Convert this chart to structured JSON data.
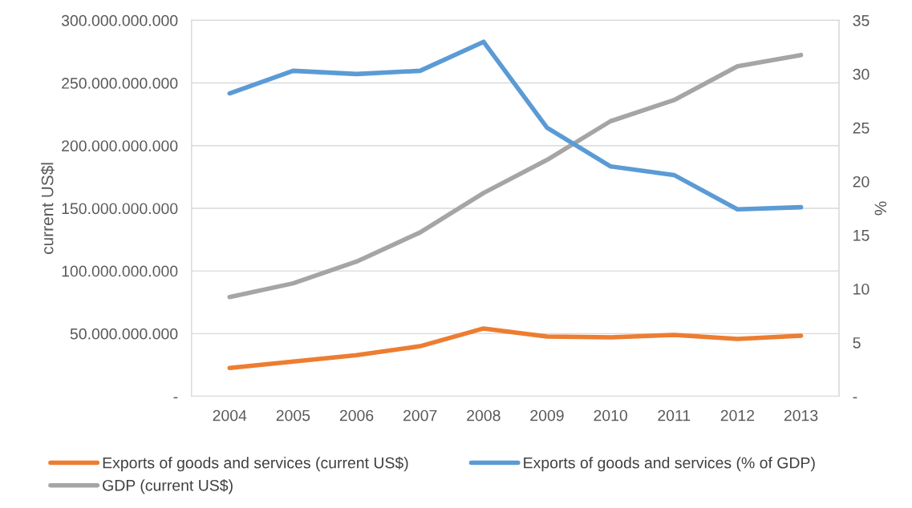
{
  "chart_data": {
    "type": "line",
    "categories": [
      "2004",
      "2005",
      "2006",
      "2007",
      "2008",
      "2009",
      "2010",
      "2011",
      "2012",
      "2013"
    ],
    "ylabel": "current US$l",
    "y2label": "%",
    "ylim": [
      0,
      300000000000
    ],
    "yticks": [
      {
        "value": 0,
        "label": "-"
      },
      {
        "value": 50000000000,
        "label": "50.000.000.000"
      },
      {
        "value": 100000000000,
        "label": "100.000.000.000"
      },
      {
        "value": 150000000000,
        "label": "150.000.000.000"
      },
      {
        "value": 200000000000,
        "label": "200.000.000.000"
      },
      {
        "value": 250000000000,
        "label": "250.000.000.000"
      },
      {
        "value": 300000000000,
        "label": "300.000.000.000"
      }
    ],
    "y2lim": [
      0,
      35
    ],
    "y2ticks": [
      {
        "value": 0,
        "label": "-"
      },
      5,
      10,
      15,
      20,
      25,
      30,
      35
    ],
    "grid": "y",
    "legend": "bottom",
    "line_style": "solid",
    "marker": "none",
    "series": [
      {
        "name": "Exports of goods and services (current US$)",
        "color": "#ed7d31",
        "values": [
          22500000000,
          27700000000,
          32800000000,
          39900000000,
          54100000000,
          47600000000,
          47000000000,
          48900000000,
          45700000000,
          48300000000
        ]
      },
      {
        "name": "GDP (current US$)",
        "color": "#a5a5a5",
        "values": [
          79200000000,
          90100000000,
          107500000000,
          130700000000,
          162200000000,
          188600000000,
          219500000000,
          236300000000,
          263300000000,
          272300000000
        ]
      },
      {
        "name": "Exports of goods and services (% of GDP)",
        "color": "#5b9bd5",
        "axis": "y2",
        "values": [
          28.2,
          30.3,
          30.0,
          30.3,
          33.0,
          25.0,
          21.4,
          20.6,
          17.4,
          17.6
        ]
      }
    ]
  }
}
